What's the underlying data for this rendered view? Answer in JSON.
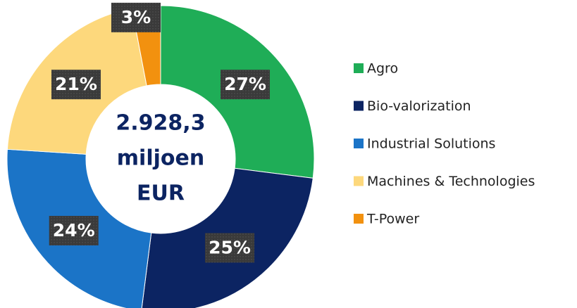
{
  "chart_data": {
    "type": "donut",
    "categories": [
      "Agro",
      "Bio-valorization",
      "Industrial Solutions",
      "Machines & Technologies",
      "T-Power"
    ],
    "values": [
      27,
      25,
      24,
      21,
      3
    ],
    "value_labels": [
      "27%",
      "25%",
      "24%",
      "21%",
      "3%"
    ],
    "colors": [
      "#1fad57",
      "#0c2462",
      "#1b74c7",
      "#fdd87c",
      "#f2910f"
    ],
    "center_label": [
      "2.928,3",
      "miljoen",
      "EUR"
    ],
    "legend": "right"
  }
}
